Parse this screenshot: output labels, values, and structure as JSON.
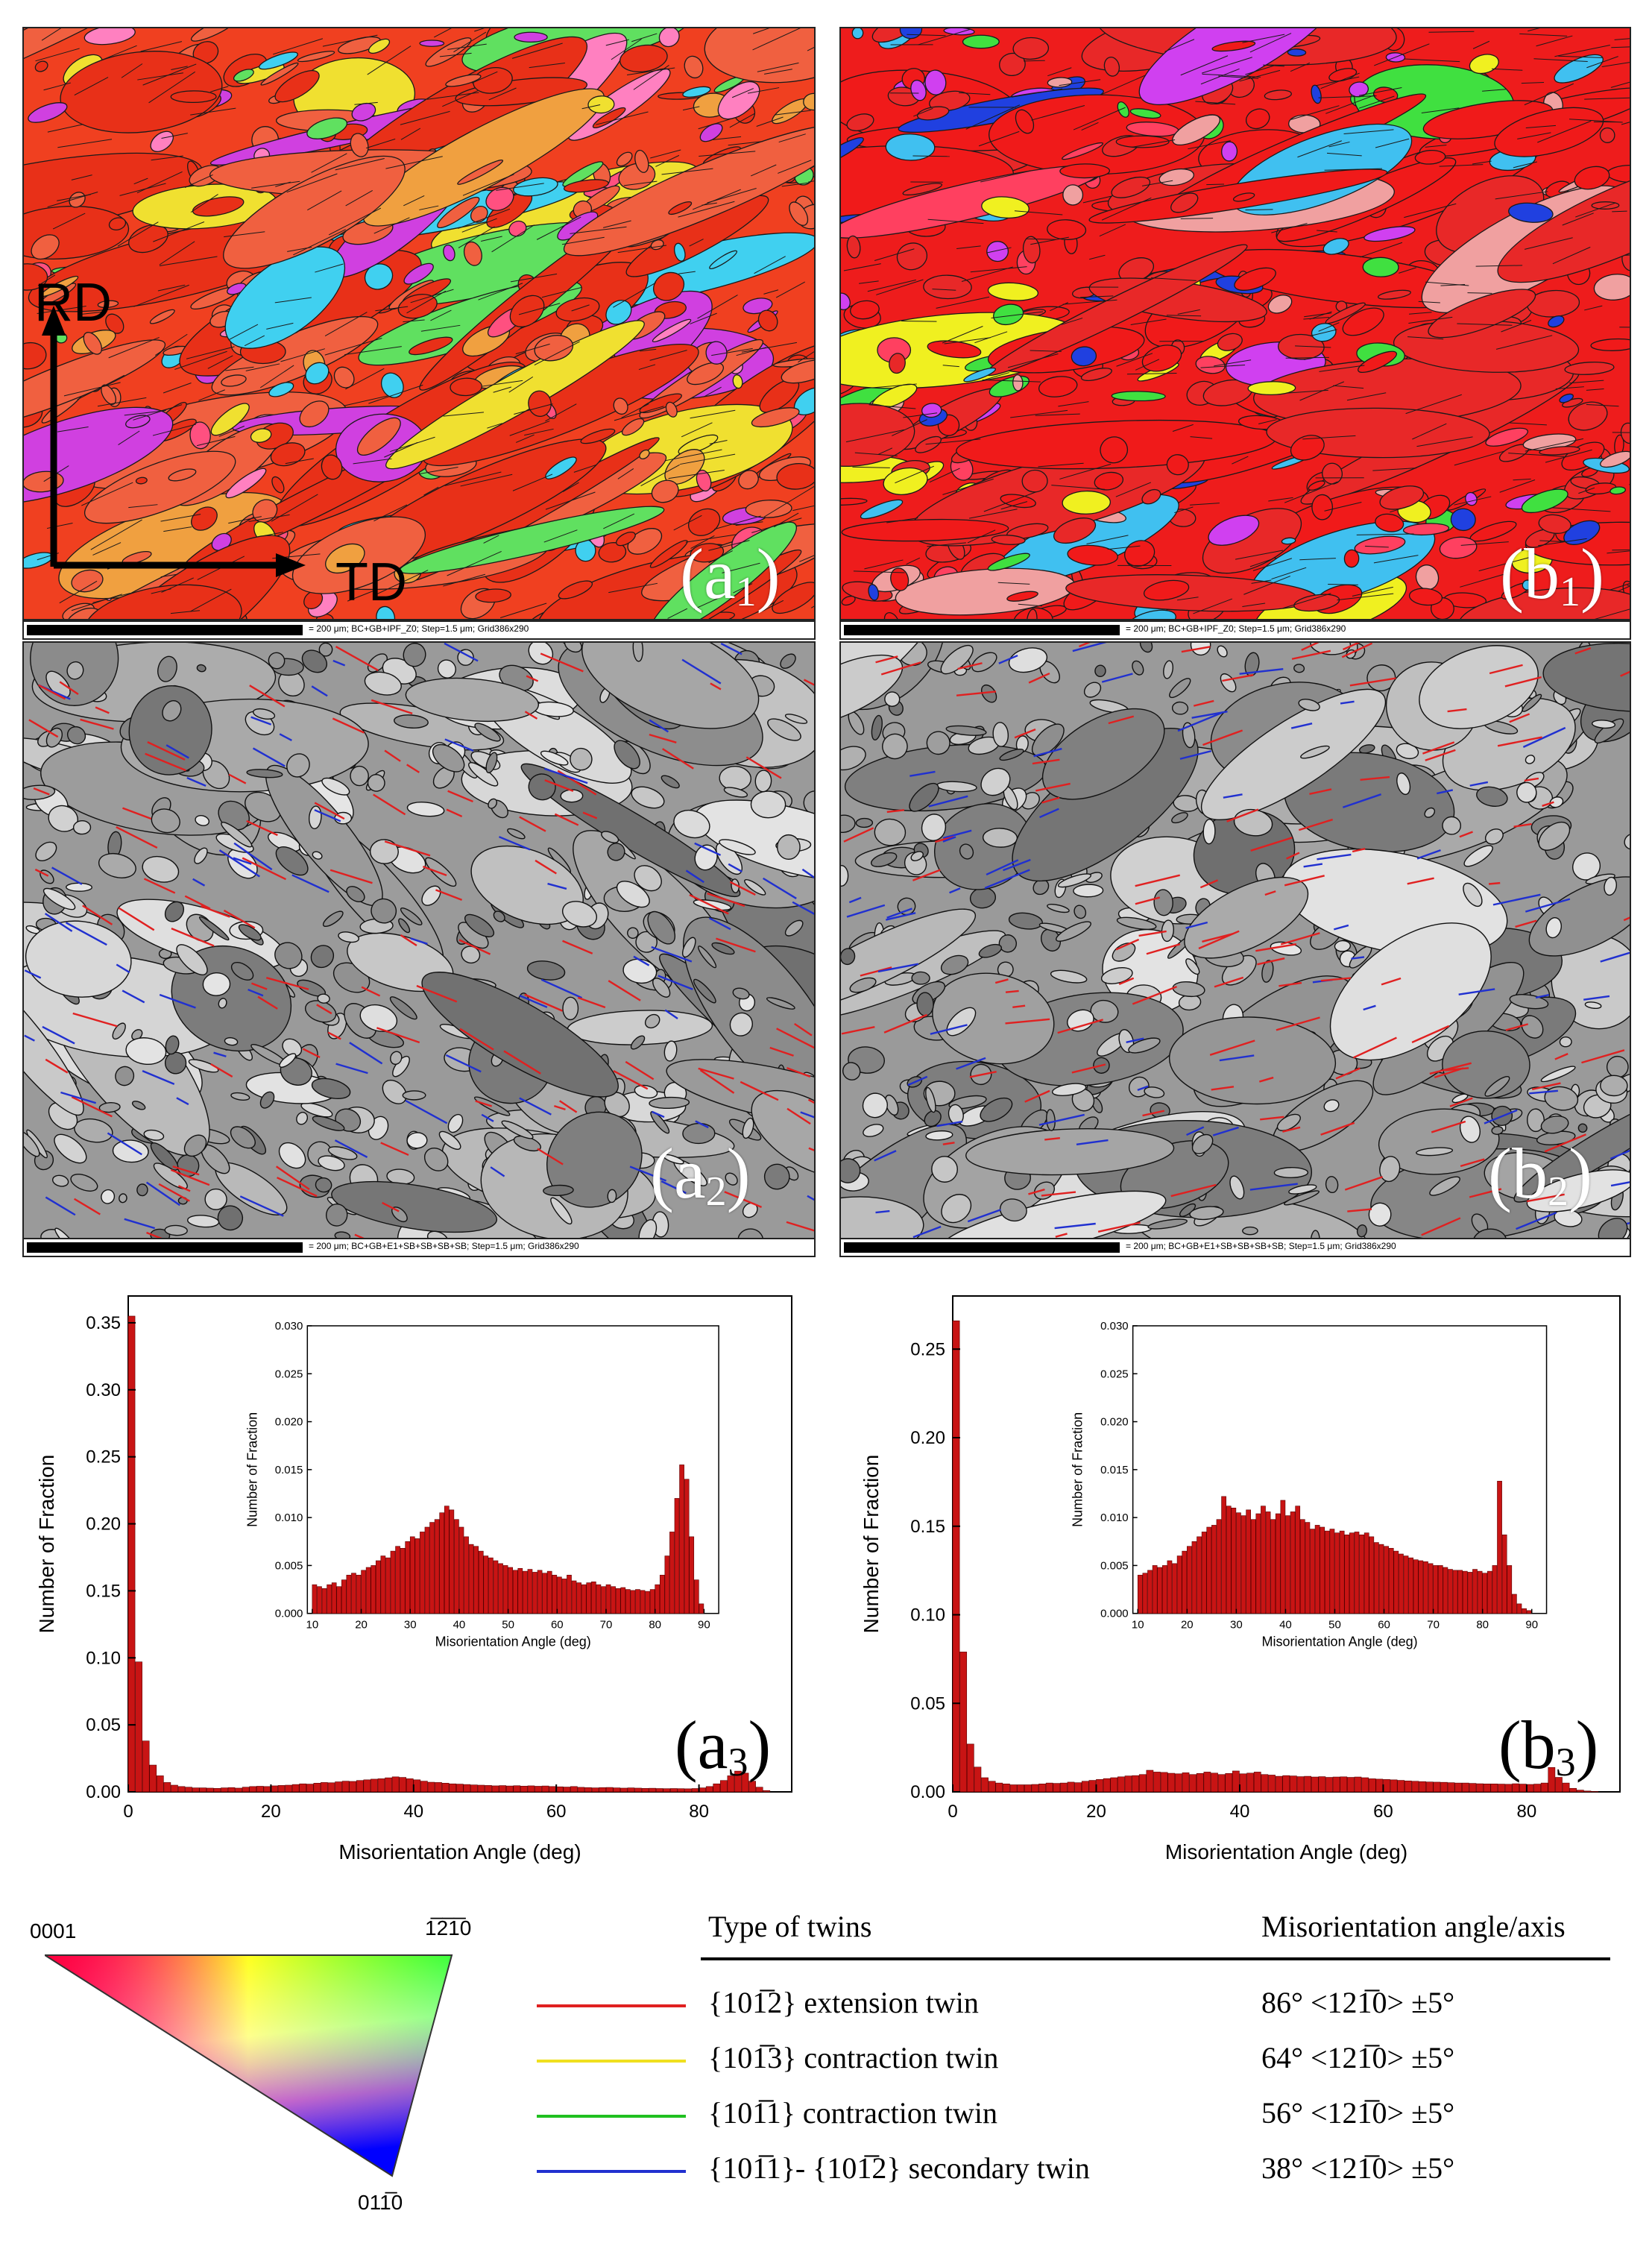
{
  "panels": {
    "a1": {
      "label_main": "(a",
      "label_sub": "1",
      "label_close": ")"
    },
    "b1": {
      "label_main": "(b",
      "label_sub": "1",
      "label_close": ")"
    },
    "a2": {
      "label_main": "(a",
      "label_sub": "2",
      "label_close": ")"
    },
    "b2": {
      "label_main": "(b",
      "label_sub": "2",
      "label_close": ")"
    },
    "a3": {
      "label_main": "(a",
      "label_sub": "3",
      "label_close": ")"
    },
    "b3": {
      "label_main": "(b",
      "label_sub": "3",
      "label_close": ")"
    }
  },
  "directions": {
    "rd": "RD",
    "td": "TD"
  },
  "scalebars": {
    "row1": "= 200 μm; BC+GB+IPF_Z0; Step=1.5 μm; Grid386x290",
    "row2": "= 200 μm; BC+GB+E1+SB+SB+SB+SB; Step=1.5 μm; Grid386x290"
  },
  "ipf": {
    "top_left": "0001",
    "top_right": "1̅2̅1̅0",
    "bottom": "011̅0"
  },
  "legend": {
    "header_type": "Type of twins",
    "header_angle": "Misorientation angle/axis",
    "rows": [
      {
        "name": "{101̅2} extension twin",
        "angle": "86° <121̅0> ±5°",
        "color": "#e02020"
      },
      {
        "name": "{101̅3} contraction twin",
        "angle": "64° <121̅0> ±5°",
        "color": "#f0e020"
      },
      {
        "name": "{101̅1} contraction twin",
        "angle": "56° <121̅0> ±5°",
        "color": "#20c020"
      },
      {
        "name": "{101̅1}- {101̅2} secondary twin",
        "angle": "38° <121̅0> ±5°",
        "color": "#2030d0"
      }
    ]
  },
  "colors": {
    "bar": "#c81414",
    "bar_edge": "#5a0000",
    "twin_red": "#e02020",
    "twin_blue": "#2030d0"
  },
  "chart_data": [
    {
      "type": "bar",
      "id": "a3",
      "xlabel": "Misorientation Angle (deg)",
      "ylabel": "Number of Fraction",
      "xlim": [
        0,
        93
      ],
      "ylim": [
        0,
        0.37
      ],
      "xticks": [
        0,
        20,
        40,
        60,
        80
      ],
      "yticks": [
        0.0,
        0.05,
        0.1,
        0.15,
        0.2,
        0.25,
        0.3,
        0.35
      ],
      "bin_width": 1,
      "x": [
        1,
        2,
        3,
        4,
        5,
        6,
        7,
        8,
        9,
        10,
        11,
        12,
        13,
        14,
        15,
        16,
        17,
        18,
        19,
        20,
        21,
        22,
        23,
        24,
        25,
        26,
        27,
        28,
        29,
        30,
        31,
        32,
        33,
        34,
        35,
        36,
        37,
        38,
        39,
        40,
        41,
        42,
        43,
        44,
        45,
        46,
        47,
        48,
        49,
        50,
        51,
        52,
        53,
        54,
        55,
        56,
        57,
        58,
        59,
        60,
        61,
        62,
        63,
        64,
        65,
        66,
        67,
        68,
        69,
        70,
        71,
        72,
        73,
        74,
        75,
        76,
        77,
        78,
        79,
        80,
        81,
        82,
        83,
        84,
        85,
        86,
        87,
        88,
        89,
        90
      ],
      "values": [
        0.355,
        0.097,
        0.038,
        0.02,
        0.012,
        0.007,
        0.005,
        0.004,
        0.0035,
        0.003,
        0.003,
        0.0028,
        0.0026,
        0.003,
        0.0032,
        0.0028,
        0.0035,
        0.004,
        0.0042,
        0.004,
        0.0045,
        0.0048,
        0.005,
        0.0055,
        0.006,
        0.0058,
        0.0065,
        0.007,
        0.0068,
        0.0075,
        0.008,
        0.0078,
        0.0085,
        0.009,
        0.0095,
        0.0098,
        0.0105,
        0.0112,
        0.0108,
        0.0098,
        0.009,
        0.008,
        0.0072,
        0.007,
        0.0065,
        0.006,
        0.0058,
        0.0055,
        0.0052,
        0.005,
        0.0048,
        0.0045,
        0.0047,
        0.0044,
        0.0046,
        0.0043,
        0.0045,
        0.0042,
        0.0044,
        0.004,
        0.0038,
        0.0036,
        0.004,
        0.0034,
        0.0032,
        0.003,
        0.0032,
        0.0033,
        0.003,
        0.0028,
        0.003,
        0.0028,
        0.0026,
        0.0027,
        0.0025,
        0.0024,
        0.0025,
        0.0024,
        0.0023,
        0.0025,
        0.003,
        0.004,
        0.006,
        0.0085,
        0.012,
        0.0155,
        0.014,
        0.008,
        0.0035,
        0.001
      ],
      "inset": {
        "xlim": [
          9,
          93
        ],
        "ylim": [
          0,
          0.03
        ],
        "xticks": [
          10,
          20,
          30,
          40,
          50,
          60,
          70,
          80,
          90
        ],
        "yticks": [
          0.0,
          0.005,
          0.01,
          0.015,
          0.02,
          0.025,
          0.03
        ],
        "xlabel": "Misorientation Angle (deg)",
        "ylabel": "Number of Fraction"
      }
    },
    {
      "type": "bar",
      "id": "b3",
      "xlabel": "Misorientation Angle (deg)",
      "ylabel": "Number of Fraction",
      "xlim": [
        0,
        93
      ],
      "ylim": [
        0,
        0.28
      ],
      "xticks": [
        0,
        20,
        40,
        60,
        80
      ],
      "yticks": [
        0.0,
        0.05,
        0.1,
        0.15,
        0.2,
        0.25
      ],
      "bin_width": 1,
      "x": [
        1,
        2,
        3,
        4,
        5,
        6,
        7,
        8,
        9,
        10,
        11,
        12,
        13,
        14,
        15,
        16,
        17,
        18,
        19,
        20,
        21,
        22,
        23,
        24,
        25,
        26,
        27,
        28,
        29,
        30,
        31,
        32,
        33,
        34,
        35,
        36,
        37,
        38,
        39,
        40,
        41,
        42,
        43,
        44,
        45,
        46,
        47,
        48,
        49,
        50,
        51,
        52,
        53,
        54,
        55,
        56,
        57,
        58,
        59,
        60,
        61,
        62,
        63,
        64,
        65,
        66,
        67,
        68,
        69,
        70,
        71,
        72,
        73,
        74,
        75,
        76,
        77,
        78,
        79,
        80,
        81,
        82,
        83,
        84,
        85,
        86,
        87,
        88,
        89,
        90
      ],
      "values": [
        0.266,
        0.079,
        0.027,
        0.014,
        0.008,
        0.006,
        0.005,
        0.0045,
        0.004,
        0.004,
        0.004,
        0.0042,
        0.0045,
        0.005,
        0.0048,
        0.005,
        0.0055,
        0.0052,
        0.006,
        0.0065,
        0.007,
        0.0075,
        0.008,
        0.0085,
        0.009,
        0.0092,
        0.0098,
        0.0122,
        0.0112,
        0.011,
        0.0105,
        0.0102,
        0.0108,
        0.0098,
        0.0104,
        0.0112,
        0.0106,
        0.0098,
        0.0104,
        0.0118,
        0.0102,
        0.0106,
        0.0112,
        0.0098,
        0.0095,
        0.0088,
        0.0092,
        0.009,
        0.0086,
        0.0088,
        0.0084,
        0.0086,
        0.0082,
        0.0084,
        0.0085,
        0.0082,
        0.0084,
        0.008,
        0.0074,
        0.0072,
        0.007,
        0.0068,
        0.0065,
        0.0062,
        0.006,
        0.0058,
        0.0056,
        0.0055,
        0.0054,
        0.0052,
        0.005,
        0.005,
        0.0048,
        0.0046,
        0.0045,
        0.0045,
        0.0044,
        0.0043,
        0.0046,
        0.0044,
        0.0042,
        0.0044,
        0.005,
        0.0138,
        0.0082,
        0.005,
        0.002,
        0.001,
        0.0005,
        0.0003
      ],
      "inset": {
        "xlim": [
          9,
          93
        ],
        "ylim": [
          0,
          0.03
        ],
        "xticks": [
          10,
          20,
          30,
          40,
          50,
          60,
          70,
          80,
          90
        ],
        "yticks": [
          0.0,
          0.005,
          0.01,
          0.015,
          0.02,
          0.025,
          0.03
        ],
        "xlabel": "Misorientation Angle (deg)",
        "ylabel": "Number of Fraction"
      }
    }
  ]
}
